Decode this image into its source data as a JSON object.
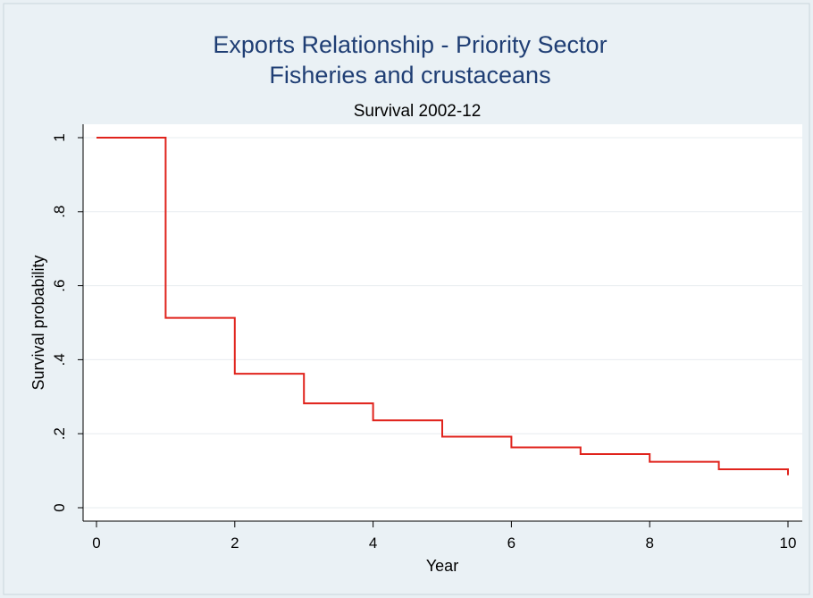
{
  "chart_data": {
    "type": "line",
    "style": "step",
    "title": [
      "Exports Relationship - Priority Sector",
      "Fisheries and crustaceans"
    ],
    "subtitle": "Survival  2002-12",
    "xlabel": "Year",
    "ylabel": "Survival probability",
    "xlim": [
      0,
      10
    ],
    "ylim": [
      0,
      1
    ],
    "xticks": [
      0,
      2,
      4,
      6,
      8,
      10
    ],
    "xtick_labels": [
      "0",
      "2",
      "4",
      "6",
      "8",
      "10"
    ],
    "yticks": [
      0,
      0.2,
      0.4,
      0.6,
      0.8,
      1
    ],
    "ytick_labels": [
      "0",
      ".2",
      ".4",
      ".6",
      ".8",
      "1"
    ],
    "grid": true,
    "series": [
      {
        "color": "#e0231c",
        "x": [
          0,
          1,
          2,
          3,
          4,
          5,
          6,
          7,
          8,
          9,
          10
        ],
        "y": [
          1.0,
          0.513,
          0.362,
          0.282,
          0.236,
          0.192,
          0.163,
          0.145,
          0.124,
          0.104,
          0.088
        ]
      }
    ]
  }
}
